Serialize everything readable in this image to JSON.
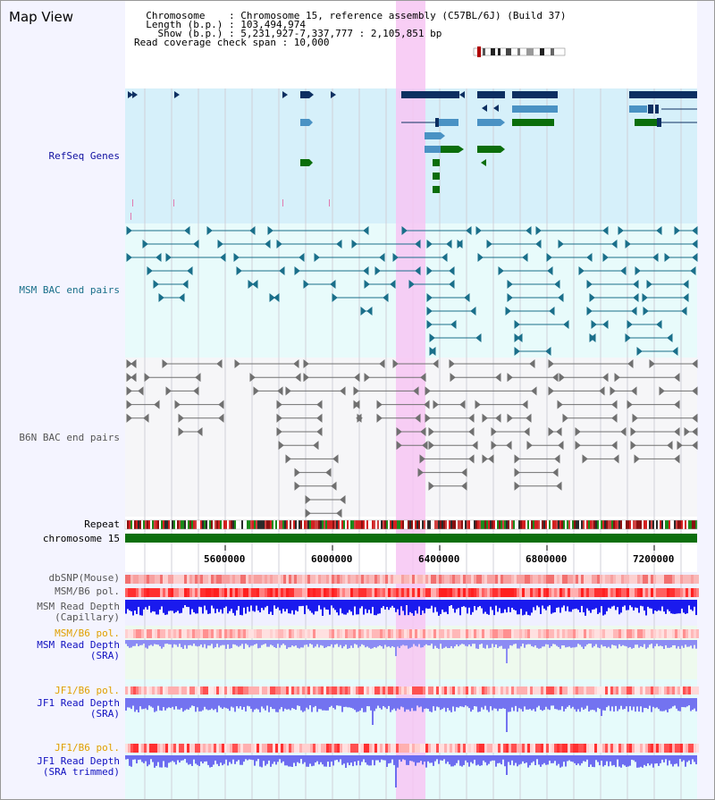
{
  "header": {
    "title": "Map View",
    "info_lines": [
      "  Chromosome    : Chromosome 15, reference assembly (C57BL/6J) (Build 37)",
      "  Length (b.p.) : 103,494,974",
      "    Show (b.p.) : 5,231,927-7,337,777 : 2,105,851 bp",
      "Read coverage check span : 10,000"
    ]
  },
  "tracks": {
    "refseq": "RefSeq Genes",
    "msm_bac": "MSM BAC end pairs",
    "b6n_bac": "B6N BAC end pairs",
    "repeat": "Repeat",
    "chromosome": "chromosome 15",
    "dbsnp": "dbSNP(Mouse)",
    "msm_b6_pol": "MSM/B6 pol.",
    "msm_depth_cap_1": "MSM Read Depth",
    "msm_depth_cap_2": "(Capillary)",
    "msm_b6_pol_2": "MSM/B6 pol.",
    "msm_depth_sra_1": "MSM Read Depth",
    "msm_depth_sra_2": "(SRA)",
    "jf1_pol": "JF1/B6 pol.",
    "jf1_depth_sra_1": "JF1 Read Depth",
    "jf1_depth_sra_2": "(SRA)",
    "jf1_pol_2": "JF1/B6 pol.",
    "jf1_depth_trim_1": "JF1 Read Depth",
    "jf1_depth_trim_2": "(SRA trimmed)"
  },
  "axis": {
    "ticks": [
      "5600000",
      "6000000",
      "6400000",
      "6800000",
      "7200000"
    ]
  },
  "colors": {
    "refseq_bg": "#d6f0fa",
    "msm_bg": "#e8fbfb",
    "b6n_bg": "#f5f5f8",
    "highlight": "#f7c6f3",
    "gene_dark": "#0d2f61",
    "gene_mid": "#4a92c4",
    "gene_green": "#0b6e0b",
    "depth_blue": "#1a1aee",
    "depth_light": "#7b7bf2",
    "chrom_green": "#0c6f0c"
  }
}
